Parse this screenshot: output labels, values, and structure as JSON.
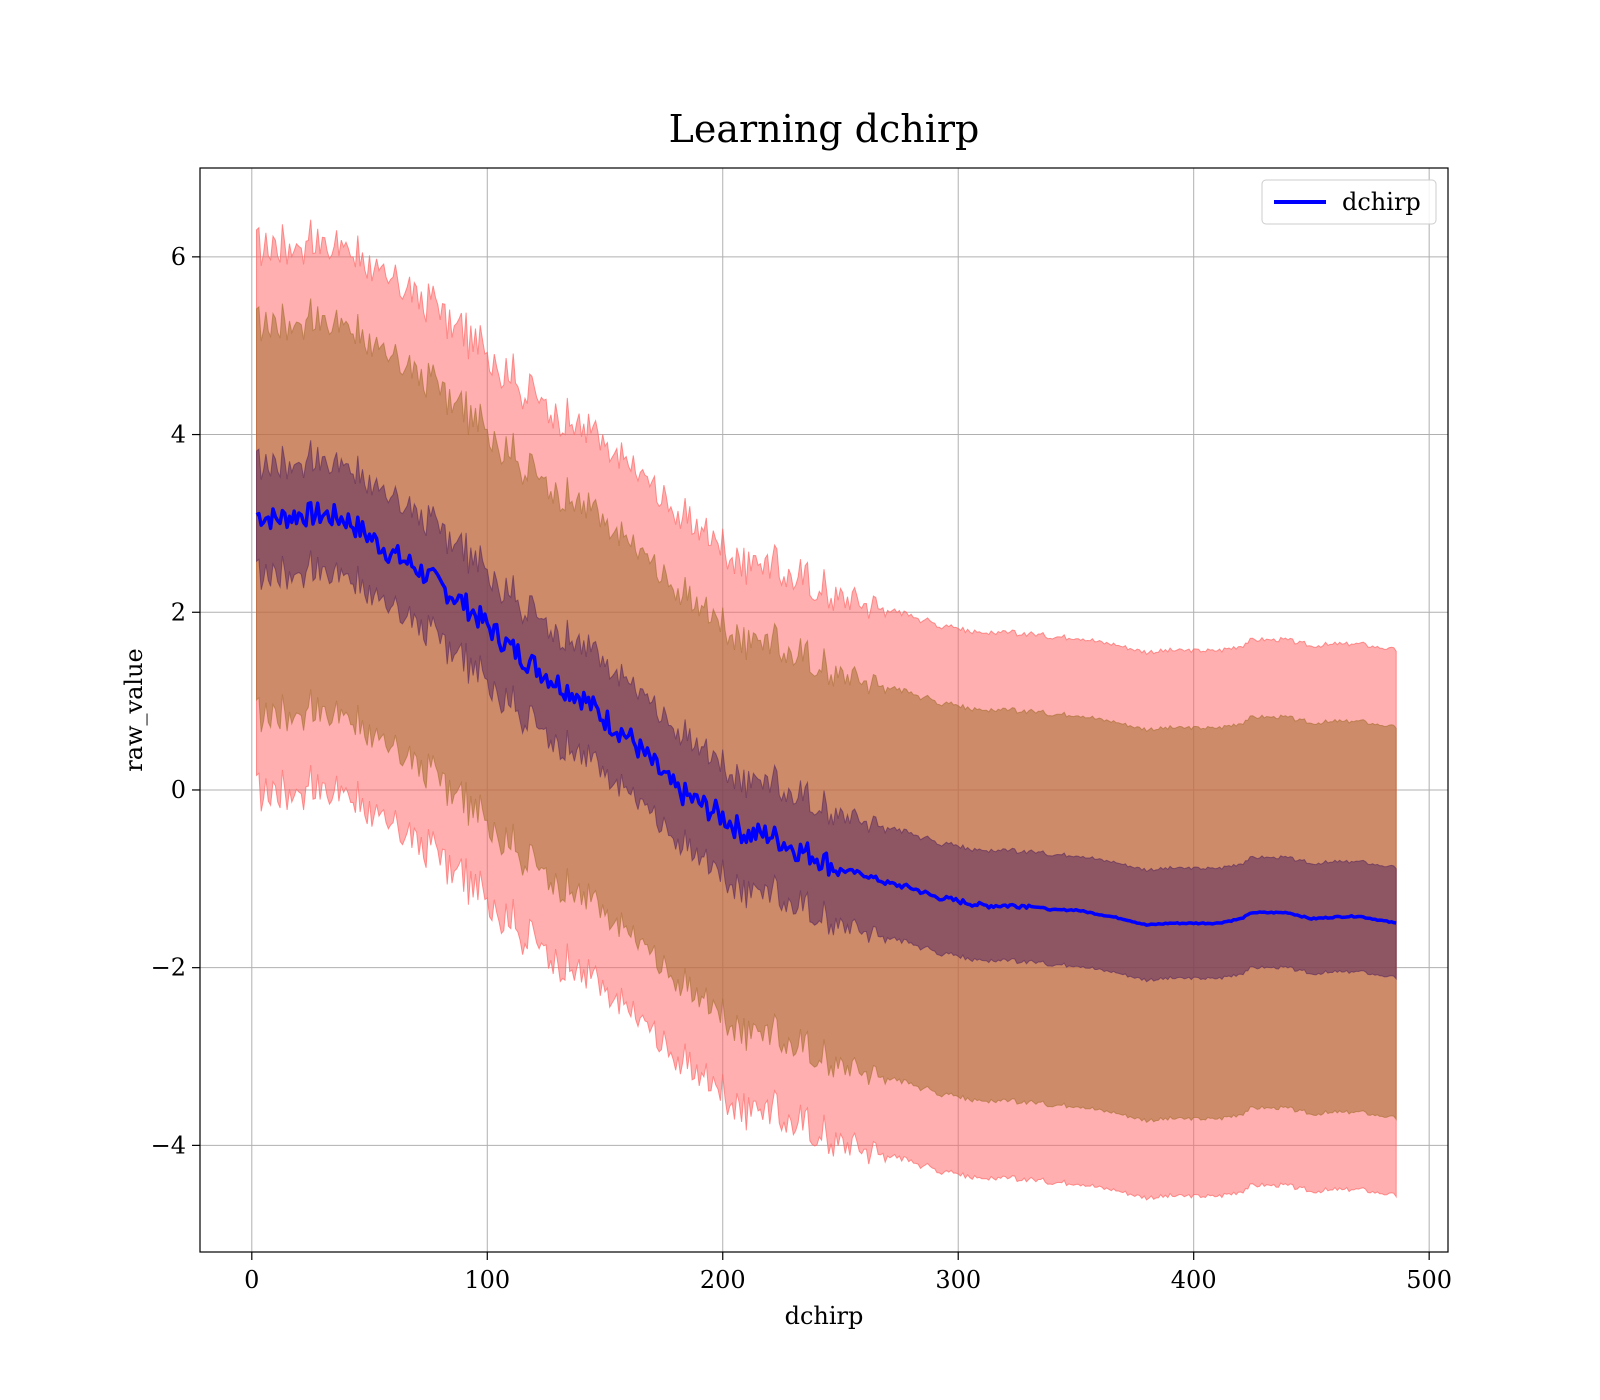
{
  "chart_data": {
    "type": "line",
    "title": "Learning dchirp",
    "xlabel": "dchirp",
    "ylabel": "raw_value",
    "xlim": [
      -22,
      508
    ],
    "ylim": [
      -5.2,
      7.0
    ],
    "xticks": [
      0,
      100,
      200,
      300,
      400,
      500
    ],
    "yticks": [
      -4,
      -2,
      0,
      2,
      4,
      6
    ],
    "xtick_labels": [
      "0",
      "100",
      "200",
      "300",
      "400",
      "500"
    ],
    "ytick_labels": [
      "−4",
      "−2",
      "0",
      "2",
      "4",
      "6"
    ],
    "grid": true,
    "legend": {
      "placement": "top-right",
      "entries": [
        "dchirp"
      ]
    },
    "colors": {
      "line": "#0000ff",
      "band3": "#ff6666",
      "band2": "#a66e30",
      "band1": "#5a2a5e"
    },
    "series": [
      {
        "name": "dchirp",
        "x": [
          2,
          10,
          20,
          30,
          40,
          50,
          60,
          70,
          80,
          90,
          100,
          110,
          120,
          130,
          140,
          150,
          160,
          170,
          180,
          190,
          200,
          210,
          220,
          230,
          240,
          250,
          260,
          270,
          280,
          290,
          300,
          310,
          320,
          330,
          340,
          350,
          360,
          370,
          380,
          390,
          400,
          410,
          420,
          425,
          430,
          440,
          450,
          460,
          470,
          480,
          486
        ],
        "y": [
          3.1,
          3.05,
          3.1,
          3.1,
          3.05,
          2.85,
          2.65,
          2.5,
          2.3,
          2.1,
          1.85,
          1.6,
          1.4,
          1.2,
          1.05,
          0.8,
          0.6,
          0.3,
          0.0,
          -0.15,
          -0.3,
          -0.5,
          -0.5,
          -0.65,
          -0.75,
          -0.9,
          -0.95,
          -1.05,
          -1.1,
          -1.2,
          -1.25,
          -1.3,
          -1.3,
          -1.3,
          -1.35,
          -1.35,
          -1.4,
          -1.45,
          -1.52,
          -1.5,
          -1.5,
          -1.5,
          -1.45,
          -1.38,
          -1.38,
          -1.38,
          -1.45,
          -1.43,
          -1.42,
          -1.47,
          -1.5
        ]
      }
    ],
    "bands": [
      {
        "level": "inner",
        "half_width": [
          0.6,
          0.6,
          0.62,
          0.64,
          0.65,
          0.65,
          0.65,
          0.63,
          0.63,
          0.62,
          0.6,
          0.6,
          0.6,
          0.6,
          0.6,
          0.6,
          0.6,
          0.6,
          0.6,
          0.6,
          0.6,
          0.6,
          0.6,
          0.6,
          0.6,
          0.6,
          0.6,
          0.6,
          0.6,
          0.6,
          0.6,
          0.6,
          0.6,
          0.6,
          0.6,
          0.6,
          0.6,
          0.6,
          0.6,
          0.6,
          0.6,
          0.6,
          0.6,
          0.6,
          0.6,
          0.6,
          0.6,
          0.6,
          0.6,
          0.6,
          0.6
        ]
      },
      {
        "level": "middle",
        "half_width": 2.2
      },
      {
        "level": "outer",
        "half_width": 3.07
      }
    ]
  }
}
